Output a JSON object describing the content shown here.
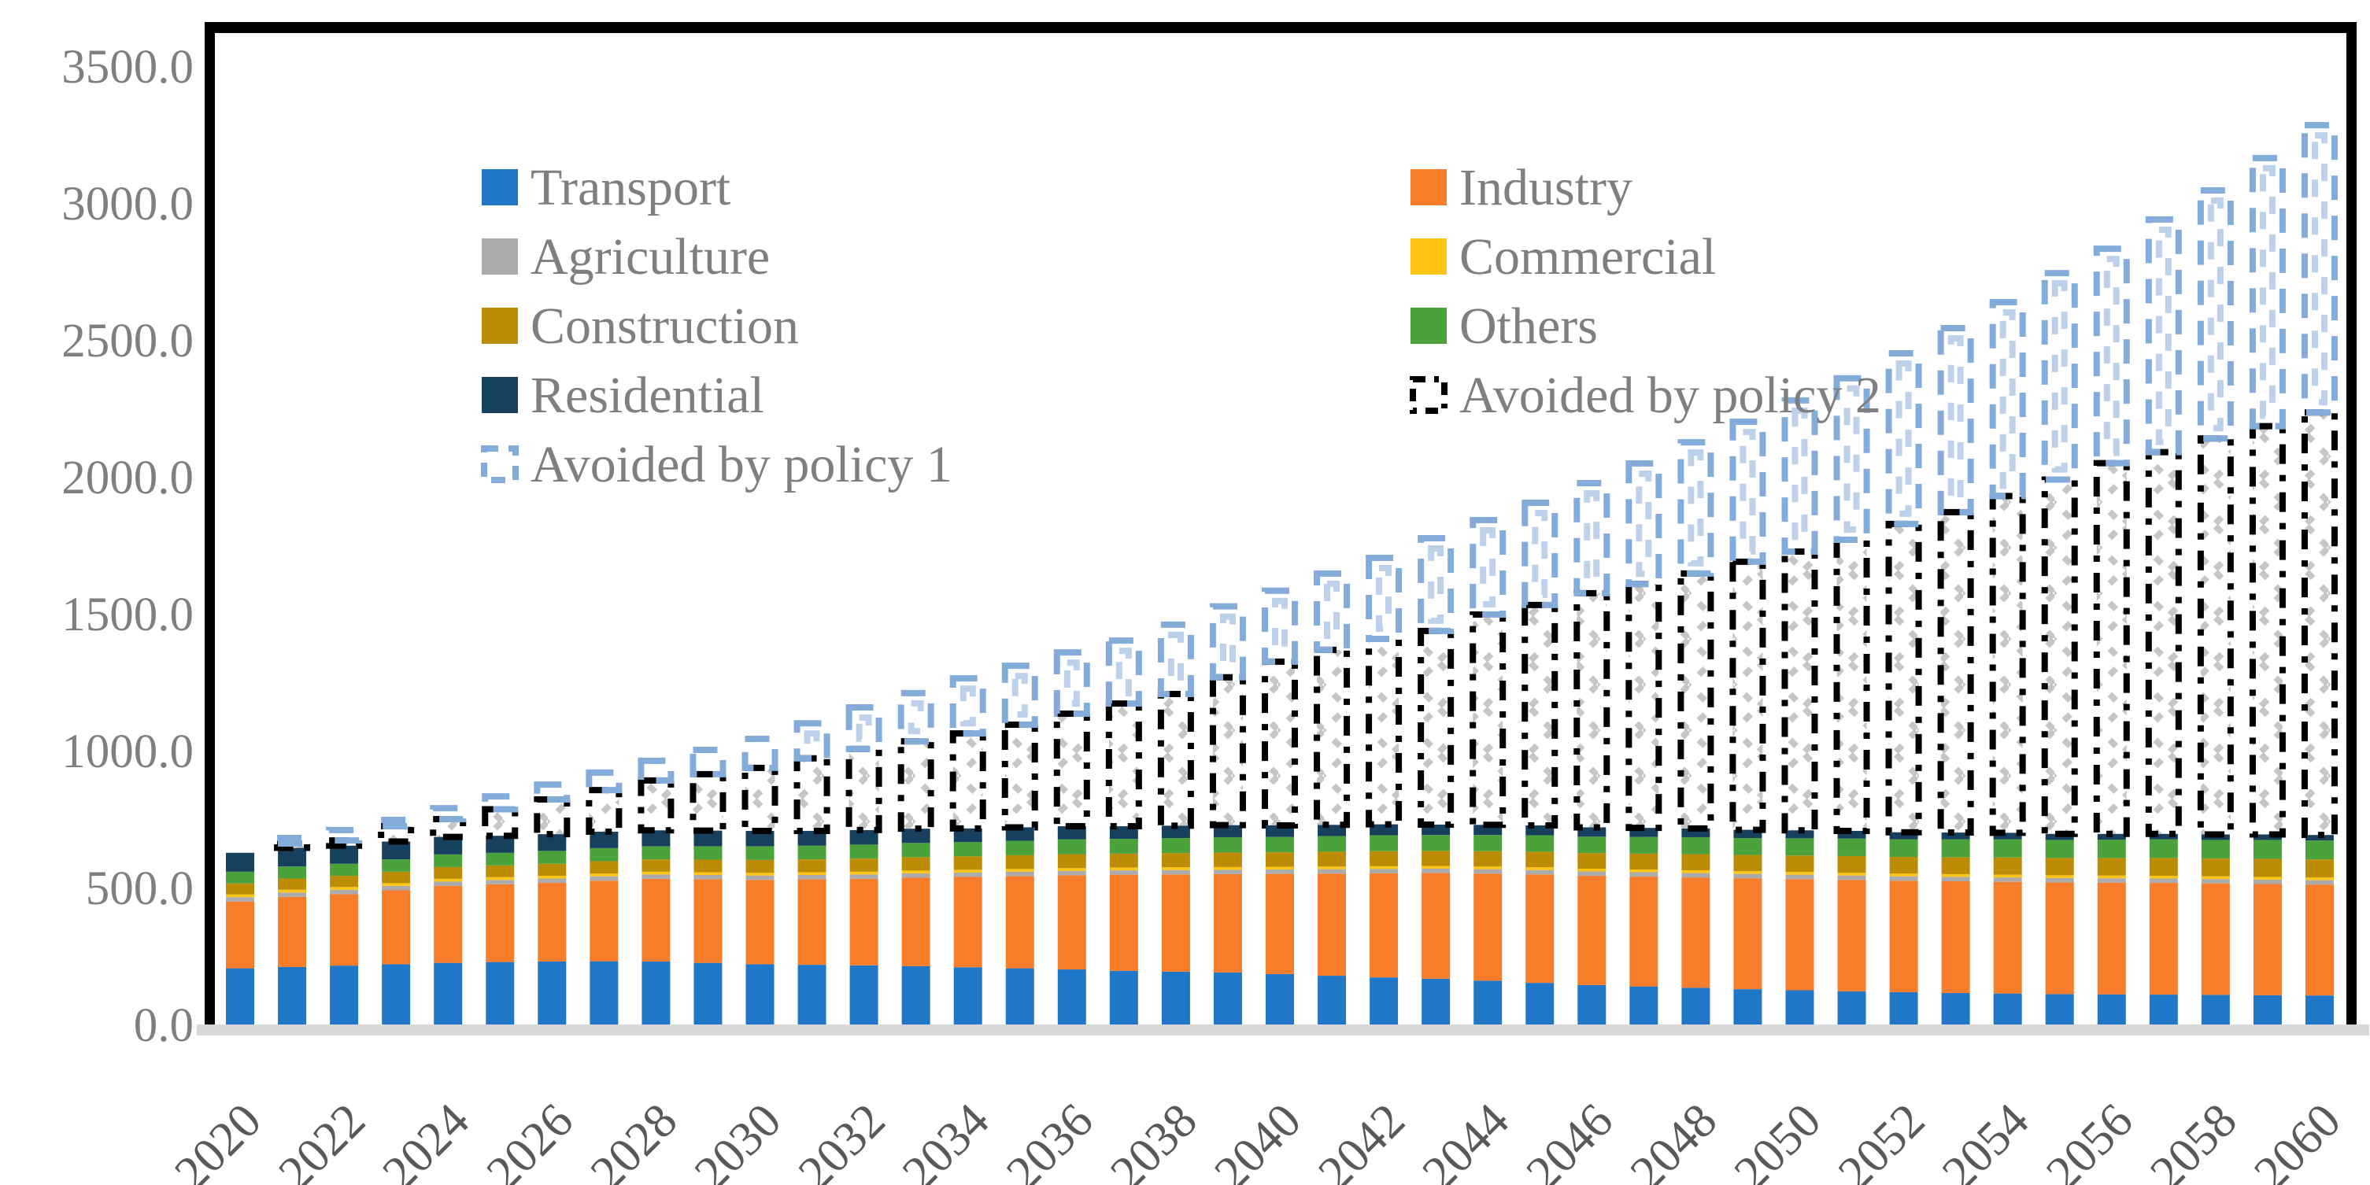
{
  "chart_data": {
    "type": "bar",
    "subtype": "stacked-with-dashed-overlay-boxes",
    "title": "",
    "xlabel": "",
    "ylabel": "",
    "grid": "off",
    "legend_position": "inside-top-left-two-columns",
    "y_axis": {
      "min": 0,
      "max": 3500,
      "step": 500,
      "ticks": [
        0,
        500,
        1000,
        1500,
        2000,
        2500,
        3000,
        3500
      ],
      "tick_labels": [
        "0.0",
        "500.0",
        "1000.0",
        "1500.0",
        "2000.0",
        "2500.0",
        "3000.0",
        "3500.0"
      ]
    },
    "x_axis": {
      "years": [
        2020,
        2021,
        2022,
        2023,
        2024,
        2025,
        2026,
        2027,
        2028,
        2029,
        2030,
        2031,
        2032,
        2033,
        2034,
        2035,
        2036,
        2037,
        2038,
        2039,
        2040,
        2041,
        2042,
        2043,
        2044,
        2045,
        2046,
        2047,
        2048,
        2049,
        2050,
        2051,
        2052,
        2053,
        2054,
        2055,
        2056,
        2057,
        2058,
        2059,
        2060
      ],
      "tick_labels": [
        "2020",
        "2022",
        "2024",
        "2026",
        "2028",
        "2030",
        "2032",
        "2034",
        "2036",
        "2038",
        "2040",
        "2042",
        "2044",
        "2046",
        "2048",
        "2050",
        "2052",
        "2054",
        "2056",
        "2058",
        "2060"
      ]
    },
    "series": [
      {
        "name": "Transport",
        "style": "solid",
        "color": "#2077C8",
        "values": [
          205,
          210,
          215,
          220,
          225,
          228,
          230,
          231,
          230,
          225,
          220,
          218,
          216,
          213,
          209,
          205,
          201,
          196,
          193,
          190,
          184,
          178,
          172,
          167,
          160,
          152,
          144,
          139,
          134,
          129,
          125,
          121,
          118,
          115,
          113,
          111,
          110,
          109,
          108,
          107,
          106
        ]
      },
      {
        "name": "Industry",
        "style": "solid",
        "color": "#F87D2A",
        "values": [
          244,
          256,
          261,
          270,
          281,
          284,
          287,
          294,
          302,
          305,
          308,
          312,
          316,
          323,
          330,
          337,
          344,
          351,
          355,
          359,
          366,
          373,
          380,
          386,
          391,
          396,
          399,
          401,
          403,
          405,
          406,
          407,
          407,
          408,
          408,
          408,
          408,
          408,
          407,
          406,
          405
        ]
      },
      {
        "name": "Agriculture",
        "style": "solid",
        "color": "#ABABAB",
        "values": [
          16,
          16,
          16,
          16,
          16,
          16,
          16,
          16,
          16,
          16,
          16,
          16,
          16,
          16,
          16,
          16,
          16,
          16,
          16,
          16,
          16,
          16,
          16,
          16,
          16,
          16,
          16,
          16,
          16,
          16,
          16,
          16,
          16,
          16,
          16,
          16,
          16,
          16,
          16,
          16,
          16
        ]
      },
      {
        "name": "Commercial",
        "style": "solid",
        "color": "#FFC414",
        "values": [
          10,
          10,
          10,
          10,
          10,
          10,
          10,
          10,
          10,
          10,
          10,
          10,
          10,
          10,
          10,
          10,
          10,
          10,
          10,
          10,
          10,
          10,
          10,
          10,
          10,
          10,
          10,
          10,
          10,
          10,
          10,
          10,
          10,
          10,
          10,
          10,
          10,
          10,
          10,
          10,
          10
        ]
      },
      {
        "name": "Construction",
        "style": "solid",
        "color": "#BC8C07",
        "values": [
          40,
          41,
          41,
          42,
          43,
          43,
          44,
          45,
          45,
          46,
          47,
          47,
          48,
          49,
          49,
          50,
          51,
          51,
          52,
          53,
          53,
          54,
          55,
          55,
          56,
          57,
          57,
          58,
          59,
          59,
          60,
          61,
          61,
          62,
          63,
          63,
          64,
          65,
          65,
          66,
          66
        ]
      },
      {
        "name": "Others",
        "style": "solid",
        "color": "#4BA23A",
        "values": [
          43,
          44,
          44,
          45,
          46,
          46,
          47,
          48,
          48,
          49,
          50,
          50,
          51,
          52,
          52,
          53,
          54,
          54,
          55,
          56,
          56,
          57,
          58,
          58,
          59,
          60,
          60,
          61,
          62,
          62,
          63,
          64,
          64,
          65,
          66,
          66,
          67,
          68,
          68,
          69,
          69
        ]
      },
      {
        "name": "Residential",
        "style": "solid",
        "color": "#17405F",
        "values": [
          69,
          68,
          66,
          65,
          64,
          62,
          61,
          60,
          58,
          57,
          56,
          54,
          53,
          52,
          50,
          49,
          48,
          46,
          45,
          44,
          42,
          41,
          40,
          38,
          37,
          36,
          34,
          33,
          32,
          30,
          29,
          28,
          26,
          25,
          24,
          22,
          21,
          20,
          20,
          20,
          20
        ]
      },
      {
        "name": "Avoided by policy 2",
        "style": "dashed-black",
        "color": "#000000",
        "hatch_color": "#C6C6C6",
        "values": [
          0,
          16,
          19,
          56,
          65,
          97,
          127,
          152,
          182,
          206,
          230,
          265,
          296,
          319,
          347,
          375,
          411,
          448,
          481,
          540,
          598,
          639,
          677,
          707,
          768,
          805,
          855,
          891,
          931,
          979,
          1018,
          1063,
          1126,
          1170,
          1230,
          1294,
          1354,
          1394,
          1446,
          1491,
          1543
        ]
      },
      {
        "name": "Avoided by policy 1",
        "style": "dashed-blue",
        "color": "#84ACDB",
        "inner_dash_color": "#BDD1EB",
        "values": [
          0,
          20,
          38,
          23,
          40,
          47,
          54,
          64,
          72,
          89,
          106,
          128,
          152,
          176,
          201,
          215,
          224,
          230,
          253,
          259,
          259,
          279,
          296,
          339,
          345,
          373,
          402,
          440,
          479,
          511,
          552,
          590,
          623,
          672,
          708,
          754,
          783,
          850,
          906,
          979,
          1049
        ]
      }
    ],
    "legend": {
      "items": [
        {
          "label": "Transport",
          "swatch": "solid",
          "color": "#2077C8"
        },
        {
          "label": "Industry",
          "swatch": "solid",
          "color": "#F87D2A"
        },
        {
          "label": "Agriculture",
          "swatch": "solid",
          "color": "#ABABAB"
        },
        {
          "label": "Commercial",
          "swatch": "solid",
          "color": "#FFC414"
        },
        {
          "label": "Construction",
          "swatch": "solid",
          "color": "#BC8C07"
        },
        {
          "label": "Others",
          "swatch": "solid",
          "color": "#4BA23A"
        },
        {
          "label": "Residential",
          "swatch": "solid",
          "color": "#17405F"
        },
        {
          "label": "Avoided by policy 2",
          "swatch": "dashed-black",
          "color": "#000000"
        },
        {
          "label": "Avoided by policy 1",
          "swatch": "dashed-blue",
          "color": "#84ACDB"
        }
      ]
    },
    "colors": {
      "plot_border": "#000000",
      "baseline": "#D8D8D8",
      "y_tick_label": "#7F7F7F",
      "x_tick_label": "#595959",
      "legend_text": "#7F7F7F",
      "background": "#FFFFFF"
    }
  }
}
